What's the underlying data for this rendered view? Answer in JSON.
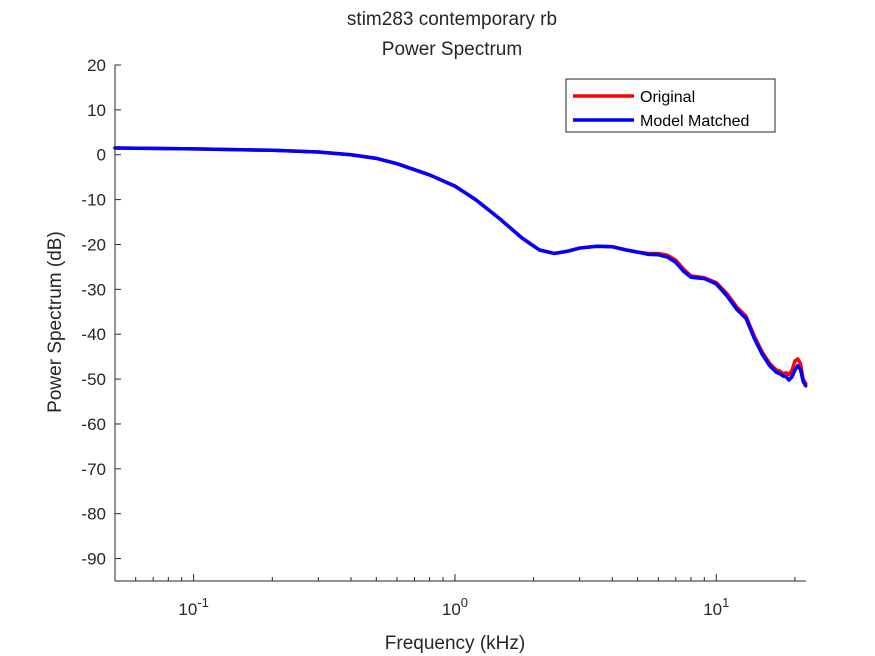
{
  "chart_data": {
    "type": "line",
    "title": "stim283 contemporary rb",
    "subtitle": "Power Spectrum",
    "xlabel": "Frequency (kHz)",
    "ylabel": "Power Spectrum (dB)",
    "xscale": "log",
    "xlim": [
      0.05,
      22.05
    ],
    "ylim": [
      -95,
      20
    ],
    "yticks": [
      20,
      10,
      0,
      -10,
      -20,
      -30,
      -40,
      -50,
      -60,
      -70,
      -80,
      -90
    ],
    "ytick_labels": [
      "20",
      "10",
      "0",
      "-10",
      "-20",
      "-30",
      "-40",
      "-50",
      "-60",
      "-70",
      "-80",
      "-90"
    ],
    "xticks": [
      0.1,
      1,
      10
    ],
    "xtick_labels": [
      {
        "base": "10",
        "exp": "-1"
      },
      {
        "base": "10",
        "exp": "0"
      },
      {
        "base": "10",
        "exp": "1"
      }
    ],
    "grid": false,
    "legend_position": "top-right",
    "series": [
      {
        "name": "Original",
        "color": "#ff0000",
        "x": [
          0.05,
          0.1,
          0.2,
          0.3,
          0.4,
          0.5,
          0.6,
          0.8,
          1.0,
          1.2,
          1.5,
          1.8,
          2.1,
          2.4,
          2.7,
          3.0,
          3.5,
          4.0,
          4.5,
          5.0,
          5.5,
          6.0,
          6.5,
          7.0,
          7.5,
          8.0,
          9.0,
          10.0,
          11.0,
          12.0,
          13.0,
          14.0,
          15.0,
          16.0,
          17.0,
          17.5,
          18.0,
          18.5,
          19.0,
          19.5,
          20.0,
          20.5,
          21.0,
          21.5,
          22.0
        ],
        "y": [
          1.5,
          1.3,
          1.0,
          0.6,
          0.0,
          -0.8,
          -2.0,
          -4.5,
          -7.0,
          -10.0,
          -14.5,
          -18.5,
          -21.2,
          -22.0,
          -21.5,
          -20.8,
          -20.4,
          -20.5,
          -21.2,
          -21.7,
          -22.0,
          -22.0,
          -22.4,
          -23.5,
          -25.5,
          -27.0,
          -27.4,
          -28.5,
          -31.0,
          -34.0,
          -36.0,
          -40.5,
          -44.0,
          -46.5,
          -48.0,
          -48.2,
          -48.8,
          -48.6,
          -49.0,
          -48.0,
          -46.0,
          -45.5,
          -46.5,
          -50.0,
          -51.0
        ]
      },
      {
        "name": "Model Matched",
        "color": "#0000ff",
        "x": [
          0.05,
          0.1,
          0.2,
          0.3,
          0.4,
          0.5,
          0.6,
          0.8,
          1.0,
          1.2,
          1.5,
          1.8,
          2.1,
          2.4,
          2.7,
          3.0,
          3.5,
          4.0,
          4.5,
          5.0,
          5.5,
          6.0,
          6.5,
          7.0,
          7.5,
          8.0,
          9.0,
          10.0,
          11.0,
          12.0,
          13.0,
          14.0,
          15.0,
          16.0,
          17.0,
          17.5,
          18.0,
          18.5,
          19.0,
          19.5,
          20.0,
          20.5,
          21.0,
          21.5,
          22.0
        ],
        "y": [
          1.5,
          1.3,
          1.0,
          0.6,
          0.0,
          -0.8,
          -2.0,
          -4.5,
          -7.0,
          -10.0,
          -14.5,
          -18.5,
          -21.2,
          -22.0,
          -21.5,
          -20.8,
          -20.4,
          -20.5,
          -21.2,
          -21.7,
          -22.2,
          -22.3,
          -22.8,
          -24.0,
          -26.0,
          -27.3,
          -27.6,
          -28.8,
          -31.5,
          -34.5,
          -36.5,
          -41.0,
          -44.5,
          -47.0,
          -48.5,
          -48.8,
          -49.3,
          -49.5,
          -50.2,
          -49.5,
          -48.0,
          -47.0,
          -47.8,
          -50.5,
          -51.5
        ]
      }
    ]
  }
}
